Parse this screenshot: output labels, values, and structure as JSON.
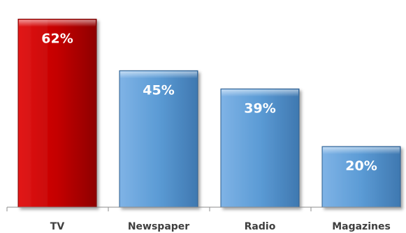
{
  "chart_data": {
    "type": "bar",
    "categories": [
      "TV",
      "Newspaper",
      "Radio",
      "Magazines"
    ],
    "values": [
      62,
      45,
      39,
      20
    ],
    "value_labels": [
      "62%",
      "45%",
      "39%",
      "20%"
    ],
    "value_unit": "%",
    "title": "",
    "xlabel": "",
    "ylabel": "",
    "ylim": [
      0,
      66
    ],
    "grid": false,
    "legend": "none",
    "highlight_category": "TV",
    "colors": {
      "highlight": "#c00000",
      "default": "#5b9bd5"
    }
  }
}
